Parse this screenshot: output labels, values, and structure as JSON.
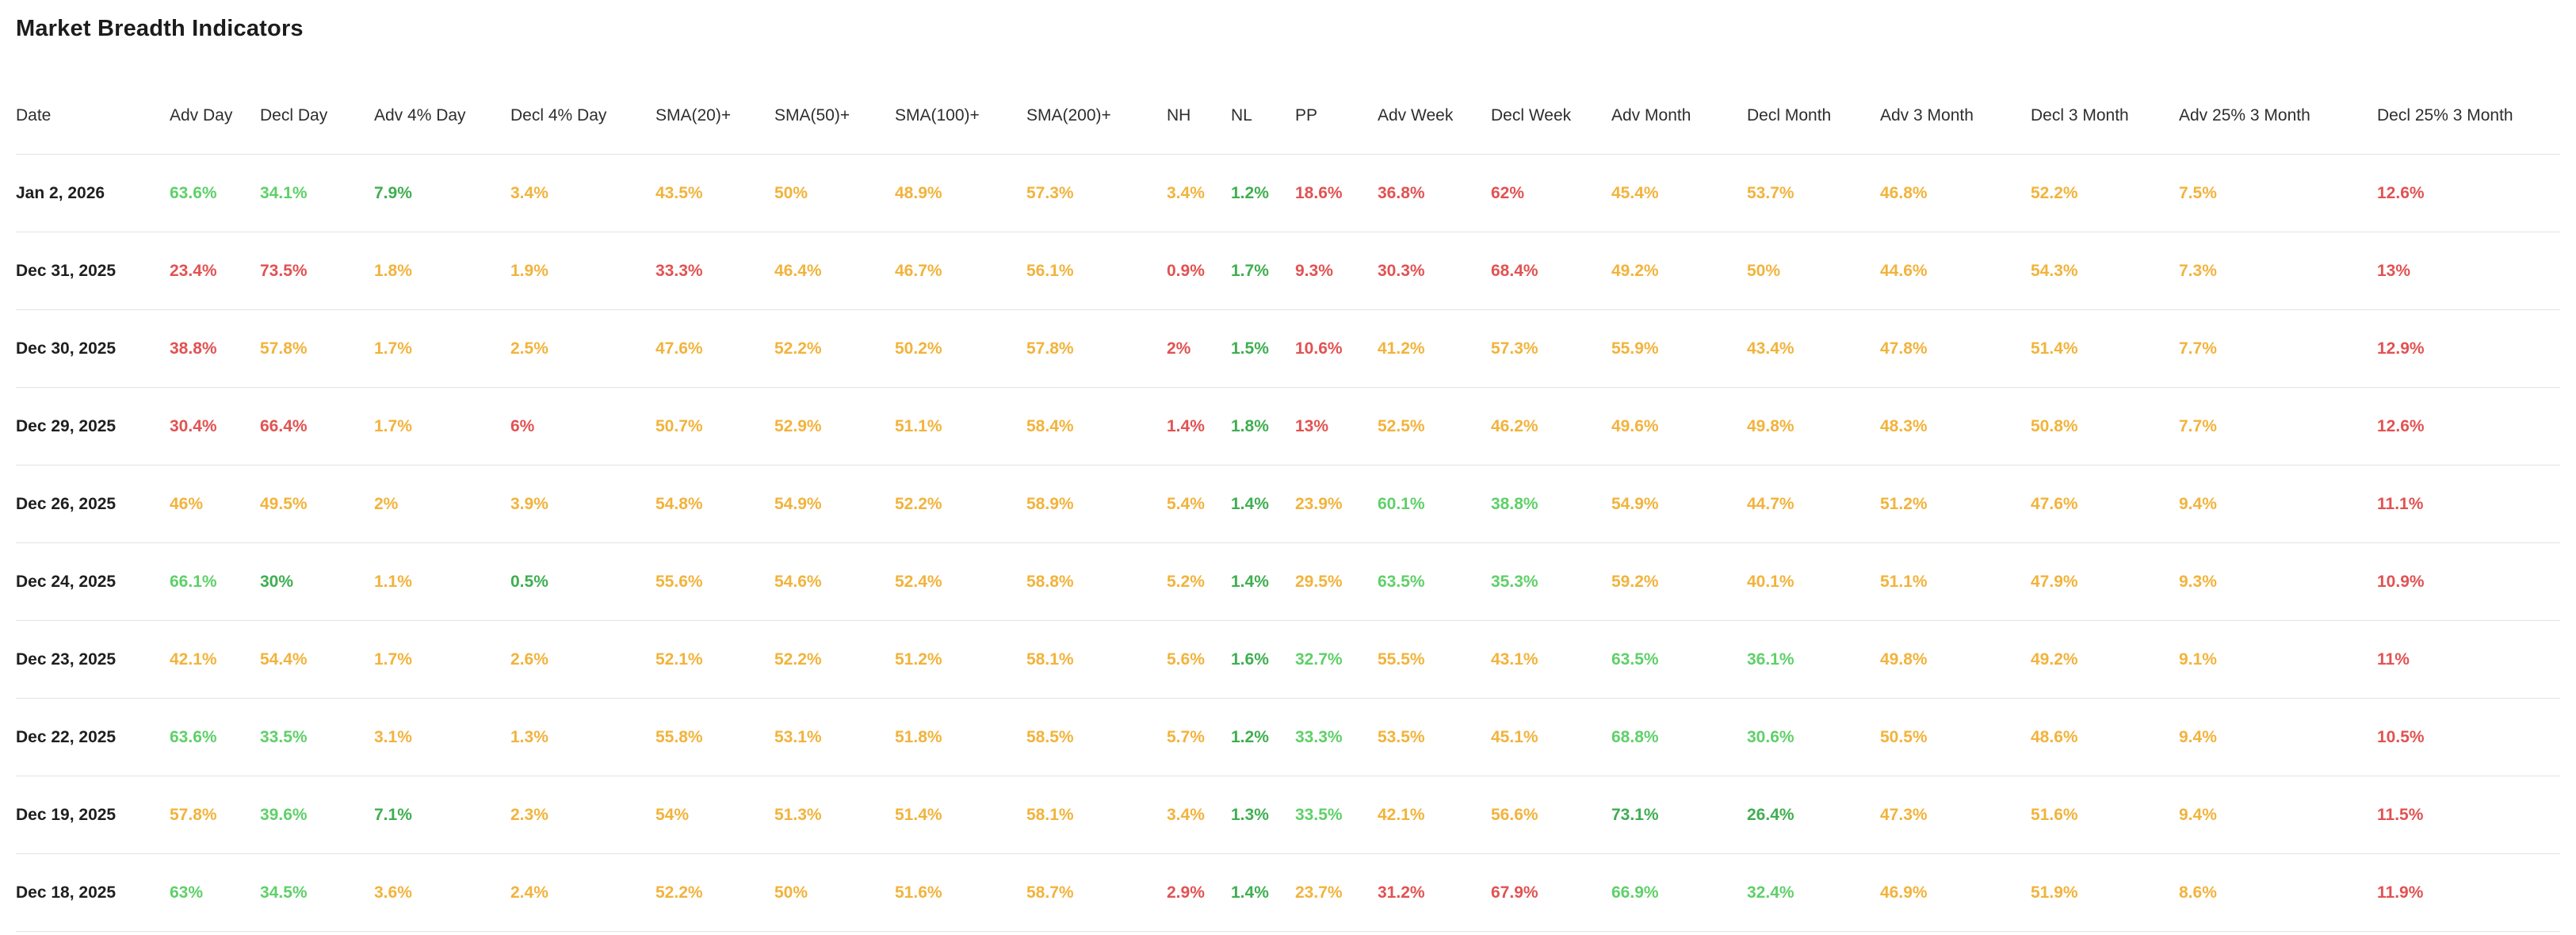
{
  "page": {
    "title": "Market Breadth Indicators"
  },
  "colors": {
    "positive": "#5fd069",
    "positive_strong": "#3fae50",
    "neutral": "#f2b33c",
    "negative": "#e25252",
    "date_text": "#1f1f1f",
    "header_text": "#2e2e2e",
    "separator": "#e3e3e3"
  },
  "table": {
    "columns": [
      "Date",
      "Adv Day",
      "Decl Day",
      "Adv 4% Day",
      "Decl 4% Day",
      "SMA(20)+",
      "SMA(50)+",
      "SMA(100)+",
      "SMA(200)+",
      "NH",
      "NL",
      "PP",
      "Adv Week",
      "Decl Week",
      "Adv Month",
      "Decl Month",
      "Adv 3 Month",
      "Decl 3 Month",
      "Adv 25% 3 Month",
      "Decl 25% 3 Month"
    ],
    "rows": [
      {
        "date": "Jan 2, 2026",
        "cells": [
          {
            "v": "63.6%",
            "c": "g"
          },
          {
            "v": "34.1%",
            "c": "g"
          },
          {
            "v": "7.9%",
            "c": "G"
          },
          {
            "v": "3.4%",
            "c": "o"
          },
          {
            "v": "43.5%",
            "c": "o"
          },
          {
            "v": "50%",
            "c": "o"
          },
          {
            "v": "48.9%",
            "c": "o"
          },
          {
            "v": "57.3%",
            "c": "o"
          },
          {
            "v": "3.4%",
            "c": "o"
          },
          {
            "v": "1.2%",
            "c": "G"
          },
          {
            "v": "18.6%",
            "c": "r"
          },
          {
            "v": "36.8%",
            "c": "r"
          },
          {
            "v": "62%",
            "c": "r"
          },
          {
            "v": "45.4%",
            "c": "o"
          },
          {
            "v": "53.7%",
            "c": "o"
          },
          {
            "v": "46.8%",
            "c": "o"
          },
          {
            "v": "52.2%",
            "c": "o"
          },
          {
            "v": "7.5%",
            "c": "o"
          },
          {
            "v": "12.6%",
            "c": "r"
          }
        ]
      },
      {
        "date": "Dec 31, 2025",
        "cells": [
          {
            "v": "23.4%",
            "c": "r"
          },
          {
            "v": "73.5%",
            "c": "r"
          },
          {
            "v": "1.8%",
            "c": "o"
          },
          {
            "v": "1.9%",
            "c": "o"
          },
          {
            "v": "33.3%",
            "c": "r"
          },
          {
            "v": "46.4%",
            "c": "o"
          },
          {
            "v": "46.7%",
            "c": "o"
          },
          {
            "v": "56.1%",
            "c": "o"
          },
          {
            "v": "0.9%",
            "c": "r"
          },
          {
            "v": "1.7%",
            "c": "G"
          },
          {
            "v": "9.3%",
            "c": "r"
          },
          {
            "v": "30.3%",
            "c": "r"
          },
          {
            "v": "68.4%",
            "c": "r"
          },
          {
            "v": "49.2%",
            "c": "o"
          },
          {
            "v": "50%",
            "c": "o"
          },
          {
            "v": "44.6%",
            "c": "o"
          },
          {
            "v": "54.3%",
            "c": "o"
          },
          {
            "v": "7.3%",
            "c": "o"
          },
          {
            "v": "13%",
            "c": "r"
          }
        ]
      },
      {
        "date": "Dec 30, 2025",
        "cells": [
          {
            "v": "38.8%",
            "c": "r"
          },
          {
            "v": "57.8%",
            "c": "o"
          },
          {
            "v": "1.7%",
            "c": "o"
          },
          {
            "v": "2.5%",
            "c": "o"
          },
          {
            "v": "47.6%",
            "c": "o"
          },
          {
            "v": "52.2%",
            "c": "o"
          },
          {
            "v": "50.2%",
            "c": "o"
          },
          {
            "v": "57.8%",
            "c": "o"
          },
          {
            "v": "2%",
            "c": "r"
          },
          {
            "v": "1.5%",
            "c": "G"
          },
          {
            "v": "10.6%",
            "c": "r"
          },
          {
            "v": "41.2%",
            "c": "o"
          },
          {
            "v": "57.3%",
            "c": "o"
          },
          {
            "v": "55.9%",
            "c": "o"
          },
          {
            "v": "43.4%",
            "c": "o"
          },
          {
            "v": "47.8%",
            "c": "o"
          },
          {
            "v": "51.4%",
            "c": "o"
          },
          {
            "v": "7.7%",
            "c": "o"
          },
          {
            "v": "12.9%",
            "c": "r"
          }
        ]
      },
      {
        "date": "Dec 29, 2025",
        "cells": [
          {
            "v": "30.4%",
            "c": "r"
          },
          {
            "v": "66.4%",
            "c": "r"
          },
          {
            "v": "1.7%",
            "c": "o"
          },
          {
            "v": "6%",
            "c": "r"
          },
          {
            "v": "50.7%",
            "c": "o"
          },
          {
            "v": "52.9%",
            "c": "o"
          },
          {
            "v": "51.1%",
            "c": "o"
          },
          {
            "v": "58.4%",
            "c": "o"
          },
          {
            "v": "1.4%",
            "c": "r"
          },
          {
            "v": "1.8%",
            "c": "G"
          },
          {
            "v": "13%",
            "c": "r"
          },
          {
            "v": "52.5%",
            "c": "o"
          },
          {
            "v": "46.2%",
            "c": "o"
          },
          {
            "v": "49.6%",
            "c": "o"
          },
          {
            "v": "49.8%",
            "c": "o"
          },
          {
            "v": "48.3%",
            "c": "o"
          },
          {
            "v": "50.8%",
            "c": "o"
          },
          {
            "v": "7.7%",
            "c": "o"
          },
          {
            "v": "12.6%",
            "c": "r"
          }
        ]
      },
      {
        "date": "Dec 26, 2025",
        "cells": [
          {
            "v": "46%",
            "c": "o"
          },
          {
            "v": "49.5%",
            "c": "o"
          },
          {
            "v": "2%",
            "c": "o"
          },
          {
            "v": "3.9%",
            "c": "o"
          },
          {
            "v": "54.8%",
            "c": "o"
          },
          {
            "v": "54.9%",
            "c": "o"
          },
          {
            "v": "52.2%",
            "c": "o"
          },
          {
            "v": "58.9%",
            "c": "o"
          },
          {
            "v": "5.4%",
            "c": "o"
          },
          {
            "v": "1.4%",
            "c": "G"
          },
          {
            "v": "23.9%",
            "c": "o"
          },
          {
            "v": "60.1%",
            "c": "g"
          },
          {
            "v": "38.8%",
            "c": "g"
          },
          {
            "v": "54.9%",
            "c": "o"
          },
          {
            "v": "44.7%",
            "c": "o"
          },
          {
            "v": "51.2%",
            "c": "o"
          },
          {
            "v": "47.6%",
            "c": "o"
          },
          {
            "v": "9.4%",
            "c": "o"
          },
          {
            "v": "11.1%",
            "c": "r"
          }
        ]
      },
      {
        "date": "Dec 24, 2025",
        "cells": [
          {
            "v": "66.1%",
            "c": "g"
          },
          {
            "v": "30%",
            "c": "G"
          },
          {
            "v": "1.1%",
            "c": "o"
          },
          {
            "v": "0.5%",
            "c": "G"
          },
          {
            "v": "55.6%",
            "c": "o"
          },
          {
            "v": "54.6%",
            "c": "o"
          },
          {
            "v": "52.4%",
            "c": "o"
          },
          {
            "v": "58.8%",
            "c": "o"
          },
          {
            "v": "5.2%",
            "c": "o"
          },
          {
            "v": "1.4%",
            "c": "G"
          },
          {
            "v": "29.5%",
            "c": "o"
          },
          {
            "v": "63.5%",
            "c": "g"
          },
          {
            "v": "35.3%",
            "c": "g"
          },
          {
            "v": "59.2%",
            "c": "o"
          },
          {
            "v": "40.1%",
            "c": "o"
          },
          {
            "v": "51.1%",
            "c": "o"
          },
          {
            "v": "47.9%",
            "c": "o"
          },
          {
            "v": "9.3%",
            "c": "o"
          },
          {
            "v": "10.9%",
            "c": "r"
          }
        ]
      },
      {
        "date": "Dec 23, 2025",
        "cells": [
          {
            "v": "42.1%",
            "c": "o"
          },
          {
            "v": "54.4%",
            "c": "o"
          },
          {
            "v": "1.7%",
            "c": "o"
          },
          {
            "v": "2.6%",
            "c": "o"
          },
          {
            "v": "52.1%",
            "c": "o"
          },
          {
            "v": "52.2%",
            "c": "o"
          },
          {
            "v": "51.2%",
            "c": "o"
          },
          {
            "v": "58.1%",
            "c": "o"
          },
          {
            "v": "5.6%",
            "c": "o"
          },
          {
            "v": "1.6%",
            "c": "G"
          },
          {
            "v": "32.7%",
            "c": "g"
          },
          {
            "v": "55.5%",
            "c": "o"
          },
          {
            "v": "43.1%",
            "c": "o"
          },
          {
            "v": "63.5%",
            "c": "g"
          },
          {
            "v": "36.1%",
            "c": "g"
          },
          {
            "v": "49.8%",
            "c": "o"
          },
          {
            "v": "49.2%",
            "c": "o"
          },
          {
            "v": "9.1%",
            "c": "o"
          },
          {
            "v": "11%",
            "c": "r"
          }
        ]
      },
      {
        "date": "Dec 22, 2025",
        "cells": [
          {
            "v": "63.6%",
            "c": "g"
          },
          {
            "v": "33.5%",
            "c": "g"
          },
          {
            "v": "3.1%",
            "c": "o"
          },
          {
            "v": "1.3%",
            "c": "o"
          },
          {
            "v": "55.8%",
            "c": "o"
          },
          {
            "v": "53.1%",
            "c": "o"
          },
          {
            "v": "51.8%",
            "c": "o"
          },
          {
            "v": "58.5%",
            "c": "o"
          },
          {
            "v": "5.7%",
            "c": "o"
          },
          {
            "v": "1.2%",
            "c": "G"
          },
          {
            "v": "33.3%",
            "c": "g"
          },
          {
            "v": "53.5%",
            "c": "o"
          },
          {
            "v": "45.1%",
            "c": "o"
          },
          {
            "v": "68.8%",
            "c": "g"
          },
          {
            "v": "30.6%",
            "c": "g"
          },
          {
            "v": "50.5%",
            "c": "o"
          },
          {
            "v": "48.6%",
            "c": "o"
          },
          {
            "v": "9.4%",
            "c": "o"
          },
          {
            "v": "10.5%",
            "c": "r"
          }
        ]
      },
      {
        "date": "Dec 19, 2025",
        "cells": [
          {
            "v": "57.8%",
            "c": "o"
          },
          {
            "v": "39.6%",
            "c": "g"
          },
          {
            "v": "7.1%",
            "c": "G"
          },
          {
            "v": "2.3%",
            "c": "o"
          },
          {
            "v": "54%",
            "c": "o"
          },
          {
            "v": "51.3%",
            "c": "o"
          },
          {
            "v": "51.4%",
            "c": "o"
          },
          {
            "v": "58.1%",
            "c": "o"
          },
          {
            "v": "3.4%",
            "c": "o"
          },
          {
            "v": "1.3%",
            "c": "G"
          },
          {
            "v": "33.5%",
            "c": "g"
          },
          {
            "v": "42.1%",
            "c": "o"
          },
          {
            "v": "56.6%",
            "c": "o"
          },
          {
            "v": "73.1%",
            "c": "G"
          },
          {
            "v": "26.4%",
            "c": "G"
          },
          {
            "v": "47.3%",
            "c": "o"
          },
          {
            "v": "51.6%",
            "c": "o"
          },
          {
            "v": "9.4%",
            "c": "o"
          },
          {
            "v": "11.5%",
            "c": "r"
          }
        ]
      },
      {
        "date": "Dec 18, 2025",
        "cells": [
          {
            "v": "63%",
            "c": "g"
          },
          {
            "v": "34.5%",
            "c": "g"
          },
          {
            "v": "3.6%",
            "c": "o"
          },
          {
            "v": "2.4%",
            "c": "o"
          },
          {
            "v": "52.2%",
            "c": "o"
          },
          {
            "v": "50%",
            "c": "o"
          },
          {
            "v": "51.6%",
            "c": "o"
          },
          {
            "v": "58.7%",
            "c": "o"
          },
          {
            "v": "2.9%",
            "c": "r"
          },
          {
            "v": "1.4%",
            "c": "G"
          },
          {
            "v": "23.7%",
            "c": "o"
          },
          {
            "v": "31.2%",
            "c": "r"
          },
          {
            "v": "67.9%",
            "c": "r"
          },
          {
            "v": "66.9%",
            "c": "g"
          },
          {
            "v": "32.4%",
            "c": "g"
          },
          {
            "v": "46.9%",
            "c": "o"
          },
          {
            "v": "51.9%",
            "c": "o"
          },
          {
            "v": "8.6%",
            "c": "o"
          },
          {
            "v": "11.9%",
            "c": "r"
          }
        ]
      }
    ]
  }
}
